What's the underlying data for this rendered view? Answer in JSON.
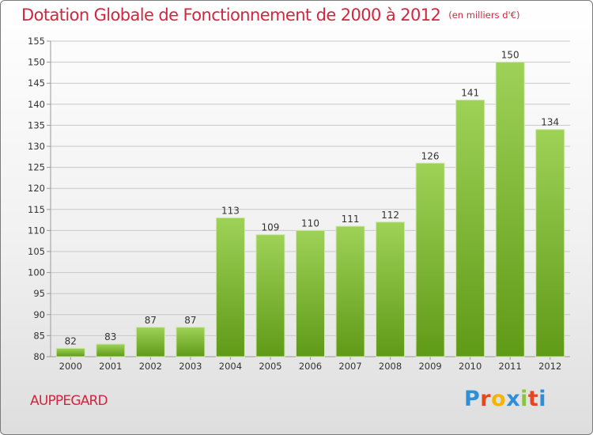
{
  "header": {
    "title": "Dotation Globale de Fonctionnement de 2000 à 2012",
    "unit": "(en milliers d'€)"
  },
  "footer": {
    "commune": "AUPPEGARD",
    "logo_letters": [
      "P",
      "r",
      "o",
      "x",
      "i",
      "t",
      "i"
    ],
    "logo_colors": [
      "#2f8fd6",
      "#e9461d",
      "#f4b400",
      "#2f8fd6",
      "#89c441",
      "#e9461d",
      "#2f8fd6"
    ]
  },
  "colors": {
    "bar_top": "#9ed257",
    "bar_bottom": "#5f9a17",
    "title": "#d2263f",
    "grid": "#c8c8c8"
  },
  "chart_data": {
    "type": "bar",
    "title": "Dotation Globale de Fonctionnement de 2000 à 2012",
    "subtitle": "(en milliers d'€)",
    "xlabel": "",
    "ylabel": "",
    "categories": [
      "2000",
      "2001",
      "2002",
      "2003",
      "2004",
      "2005",
      "2006",
      "2007",
      "2008",
      "2009",
      "2010",
      "2011",
      "2012"
    ],
    "values": [
      82,
      83,
      87,
      87,
      113,
      109,
      110,
      111,
      112,
      126,
      141,
      150,
      134
    ],
    "ylim": [
      80,
      155
    ],
    "yticks": [
      80,
      85,
      90,
      95,
      100,
      105,
      110,
      115,
      120,
      125,
      130,
      135,
      140,
      145,
      150,
      155
    ],
    "grid": true,
    "data_labels": true
  }
}
